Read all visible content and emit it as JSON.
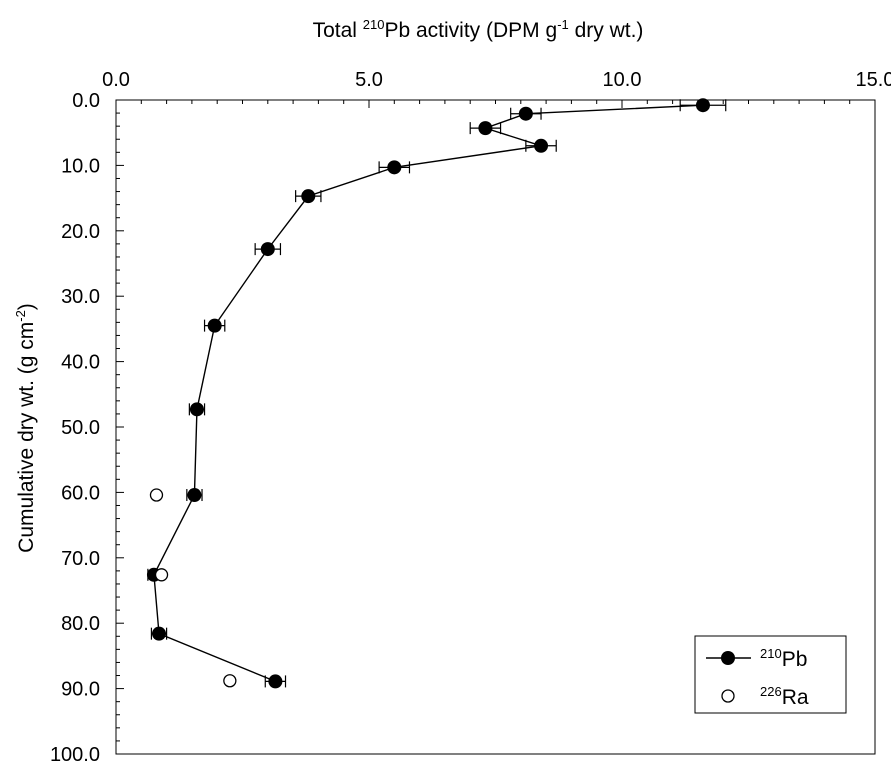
{
  "chart_data": {
    "type": "scatter",
    "x_axis": {
      "label": "Total 210Pb activity (DPM g-1 dry wt.)",
      "label_parts": {
        "pre": "Total ",
        "sup1": "210",
        "mid": "Pb activity (DPM g",
        "sup2": "-1",
        "post": " dry wt.)"
      },
      "position": "top",
      "range": [
        0,
        15
      ],
      "ticks": [
        "0.0",
        "5.0",
        "10.0",
        "15.0"
      ]
    },
    "y_axis": {
      "label": "Cumulative dry wt. (g cm-2)",
      "label_parts": {
        "pre": "Cumulative dry wt. (g cm",
        "sup": "-2",
        "post": ")"
      },
      "inverted": true,
      "range": [
        0,
        100
      ],
      "ticks": [
        "0.0",
        "10.0",
        "20.0",
        "30.0",
        "40.0",
        "50.0",
        "60.0",
        "70.0",
        "80.0",
        "90.0",
        "100.0"
      ]
    },
    "grid": false,
    "legend": {
      "placement": "bottom-right",
      "entries": [
        {
          "sup": "210",
          "text": "Pb"
        },
        {
          "sup": "226",
          "text": "Ra"
        }
      ]
    },
    "series": [
      {
        "name": "210Pb",
        "marker": "filled-circle",
        "connected": true,
        "points": [
          {
            "x": 11.6,
            "y": 0.8,
            "err": 0.45
          },
          {
            "x": 8.1,
            "y": 2.1,
            "err": 0.3
          },
          {
            "x": 7.3,
            "y": 4.3,
            "err": 0.3
          },
          {
            "x": 8.4,
            "y": 7.0,
            "err": 0.3
          },
          {
            "x": 5.5,
            "y": 10.3,
            "err": 0.3
          },
          {
            "x": 3.8,
            "y": 14.7,
            "err": 0.25
          },
          {
            "x": 3.0,
            "y": 22.8,
            "err": 0.25
          },
          {
            "x": 1.95,
            "y": 34.5,
            "err": 0.2
          },
          {
            "x": 1.6,
            "y": 47.3,
            "err": 0.15
          },
          {
            "x": 1.55,
            "y": 60.4,
            "err": 0.15
          },
          {
            "x": 0.75,
            "y": 72.6,
            "err": 0.12
          },
          {
            "x": 0.85,
            "y": 81.6,
            "err": 0.15
          },
          {
            "x": 3.15,
            "y": 88.9,
            "err": 0.2
          }
        ]
      },
      {
        "name": "226Ra",
        "marker": "open-circle",
        "connected": false,
        "points": [
          {
            "x": 0.8,
            "y": 60.4
          },
          {
            "x": 0.9,
            "y": 72.6
          },
          {
            "x": 2.25,
            "y": 88.8
          }
        ]
      }
    ]
  }
}
